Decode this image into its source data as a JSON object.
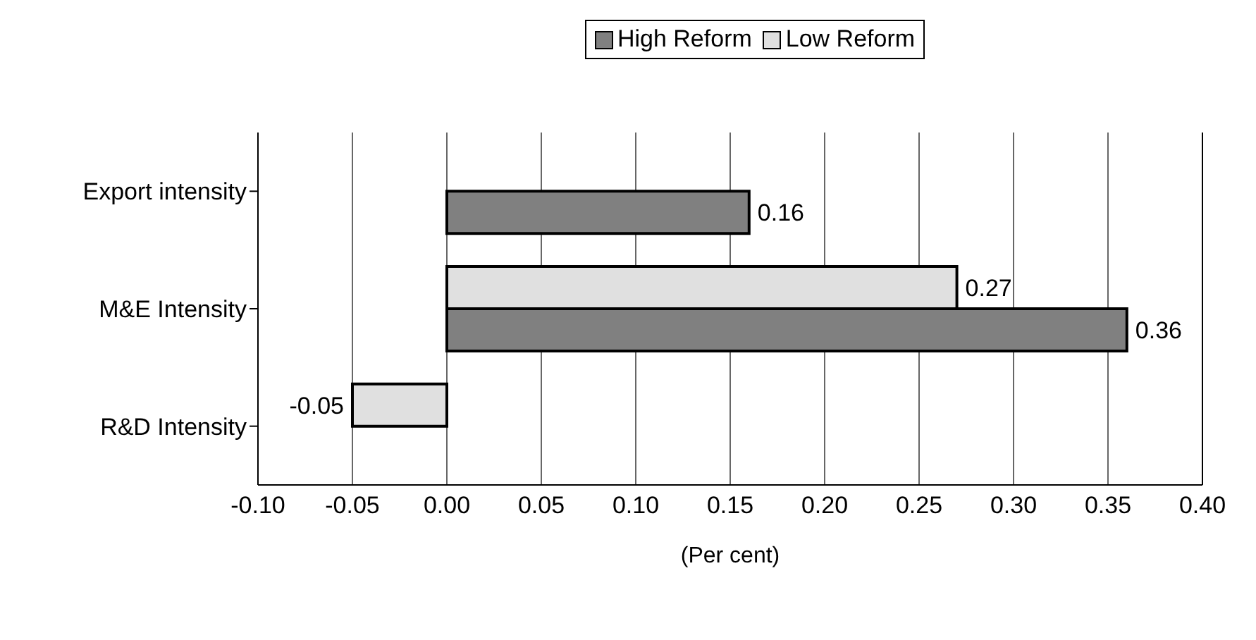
{
  "chart_data": {
    "type": "bar",
    "orientation": "horizontal",
    "xlabel": "(Per cent)",
    "categories": [
      "Export intensity",
      "M&E Intensity",
      "R&D Intensity"
    ],
    "series": [
      {
        "name": "High Reform",
        "color": "#808080",
        "values": [
          0.16,
          0.36,
          null
        ]
      },
      {
        "name": "Low Reform",
        "color": "#e0e0e0",
        "values": [
          null,
          0.27,
          -0.05
        ]
      }
    ],
    "xlim": [
      -0.1,
      0.4
    ],
    "xticks": [
      {
        "value": -0.1,
        "label": "-0.10"
      },
      {
        "value": -0.05,
        "label": "-0.05"
      },
      {
        "value": 0,
        "label": "0.00"
      },
      {
        "value": 0.05,
        "label": "0.05"
      },
      {
        "value": 0.1,
        "label": "0.10"
      },
      {
        "value": 0.15,
        "label": "0.15"
      },
      {
        "value": 0.2,
        "label": "0.20"
      },
      {
        "value": 0.25,
        "label": "0.25"
      },
      {
        "value": 0.3,
        "label": "0.30"
      },
      {
        "value": 0.35,
        "label": "0.35"
      },
      {
        "value": 0.4,
        "label": "0.40"
      }
    ],
    "grid": "x",
    "legend": "top",
    "data_labels": true
  }
}
